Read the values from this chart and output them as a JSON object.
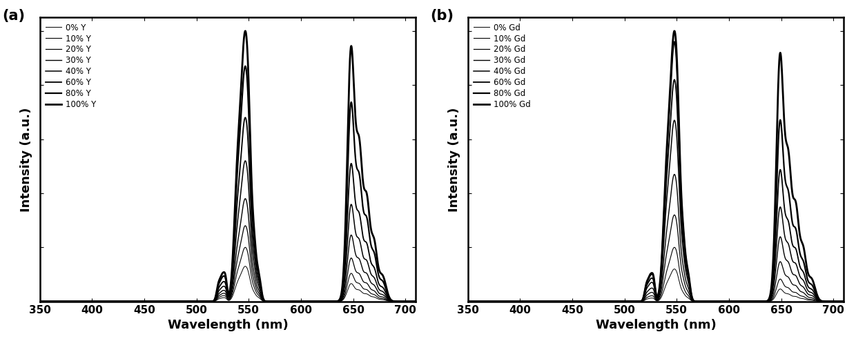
{
  "panel_a": {
    "label": "(a)",
    "legend_labels": [
      "0% Y",
      "10% Y",
      "20% Y",
      "30% Y",
      "40% Y",
      "60% Y",
      "80% Y",
      "100% Y"
    ],
    "line_widths": [
      0.7,
      0.8,
      0.9,
      1.0,
      1.1,
      1.3,
      1.6,
      2.0
    ],
    "peak_scale_green": [
      0.13,
      0.2,
      0.28,
      0.38,
      0.52,
      0.68,
      0.87,
      1.0
    ],
    "peak_scale_red": [
      0.07,
      0.11,
      0.17,
      0.26,
      0.38,
      0.54,
      0.78,
      1.0
    ]
  },
  "panel_b": {
    "label": "(b)",
    "legend_labels": [
      "0% Gd",
      "10% Gd",
      "20% Gd",
      "30% Gd",
      "40% Gd",
      "60% Gd",
      "80% Gd",
      "100% Gd"
    ],
    "line_widths": [
      0.7,
      0.8,
      0.9,
      1.0,
      1.1,
      1.3,
      1.6,
      2.0
    ],
    "peak_scale_green": [
      0.12,
      0.2,
      0.32,
      0.47,
      0.67,
      0.82,
      0.96,
      1.0
    ],
    "peak_scale_red": [
      0.05,
      0.09,
      0.16,
      0.26,
      0.38,
      0.53,
      0.73,
      1.0
    ]
  },
  "xlabel": "Wavelength (nm)",
  "ylabel": "Intensity (a.u.)",
  "xlim": [
    350,
    710
  ],
  "xticks": [
    350,
    400,
    450,
    500,
    550,
    600,
    650,
    700
  ],
  "line_color": "#000000",
  "background_color": "#ffffff",
  "figsize": [
    12.4,
    4.94
  ],
  "dpi": 100
}
